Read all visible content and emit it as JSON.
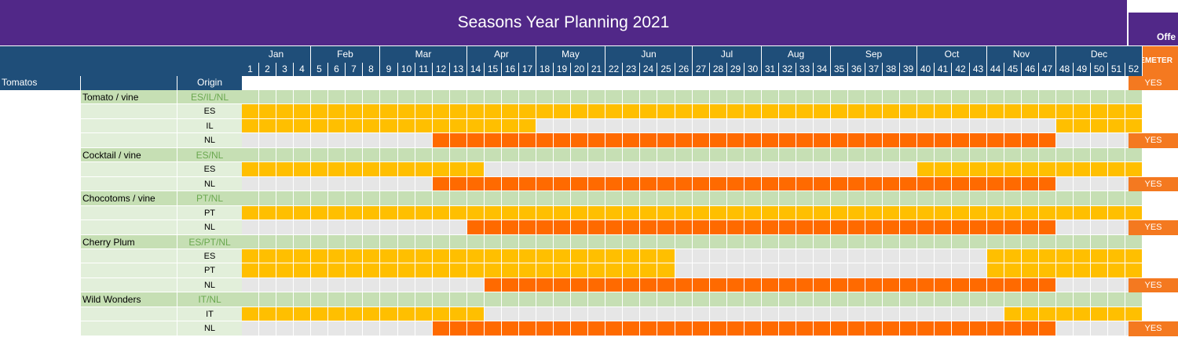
{
  "title": "Seasons Year Planning 2021",
  "offer_header": "Offe",
  "demeter_header": "DEMETER",
  "category": "Tomatos",
  "origin_header": "Origin",
  "months": [
    {
      "name": "Jan",
      "start": 1,
      "end": 4
    },
    {
      "name": "Feb",
      "start": 5,
      "end": 8
    },
    {
      "name": "Mar",
      "start": 9,
      "end": 13
    },
    {
      "name": "Apr",
      "start": 14,
      "end": 17
    },
    {
      "name": "May",
      "start": 18,
      "end": 21
    },
    {
      "name": "Jun",
      "start": 22,
      "end": 26
    },
    {
      "name": "Jul",
      "start": 27,
      "end": 30
    },
    {
      "name": "Aug",
      "start": 31,
      "end": 34
    },
    {
      "name": "Sep",
      "start": 35,
      "end": 39
    },
    {
      "name": "Oct",
      "start": 40,
      "end": 43
    },
    {
      "name": "Nov",
      "start": 44,
      "end": 47
    },
    {
      "name": "Dec",
      "start": 48,
      "end": 52
    }
  ],
  "header_demeter": "YES",
  "colors": {
    "purple": "#512888",
    "blue": "#1f4e79",
    "green": "#c6dfb4",
    "grey": "#e6e6e6",
    "yellow": "#ffbf00",
    "orange": "#ff6a00",
    "demeter": "#f47920"
  },
  "rows": [
    {
      "type": "product",
      "name": "Tomato / vine",
      "origin": "ES/IL/NL",
      "demeter": ""
    },
    {
      "type": "sub",
      "origin": "ES",
      "demeter": "",
      "ranges": [
        {
          "from": 1,
          "to": 52,
          "c": "yellow"
        }
      ]
    },
    {
      "type": "sub",
      "origin": "IL",
      "demeter": "",
      "ranges": [
        {
          "from": 1,
          "to": 17,
          "c": "yellow"
        },
        {
          "from": 48,
          "to": 52,
          "c": "yellow"
        }
      ]
    },
    {
      "type": "sub",
      "origin": "NL",
      "demeter": "YES",
      "ranges": [
        {
          "from": 12,
          "to": 47,
          "c": "orange"
        }
      ]
    },
    {
      "type": "product",
      "name": "Cocktail / vine",
      "origin": "ES/NL",
      "demeter": ""
    },
    {
      "type": "sub",
      "origin": "ES",
      "demeter": "",
      "ranges": [
        {
          "from": 1,
          "to": 14,
          "c": "yellow"
        },
        {
          "from": 40,
          "to": 52,
          "c": "yellow"
        }
      ]
    },
    {
      "type": "sub",
      "origin": "NL",
      "demeter": "YES",
      "ranges": [
        {
          "from": 12,
          "to": 47,
          "c": "orange"
        }
      ]
    },
    {
      "type": "product",
      "name": "Chocotoms / vine",
      "origin": "PT/NL",
      "demeter": ""
    },
    {
      "type": "sub",
      "origin": "PT",
      "demeter": "",
      "ranges": [
        {
          "from": 1,
          "to": 52,
          "c": "yellow"
        }
      ]
    },
    {
      "type": "sub",
      "origin": "NL",
      "demeter": "YES",
      "ranges": [
        {
          "from": 14,
          "to": 47,
          "c": "orange"
        }
      ]
    },
    {
      "type": "product",
      "name": "Cherry Plum",
      "origin": "ES/PT/NL",
      "demeter": ""
    },
    {
      "type": "sub",
      "origin": "ES",
      "demeter": "",
      "ranges": [
        {
          "from": 1,
          "to": 25,
          "c": "yellow"
        },
        {
          "from": 44,
          "to": 52,
          "c": "yellow"
        }
      ]
    },
    {
      "type": "sub",
      "origin": "PT",
      "demeter": "",
      "ranges": [
        {
          "from": 1,
          "to": 25,
          "c": "yellow"
        },
        {
          "from": 44,
          "to": 52,
          "c": "yellow"
        }
      ]
    },
    {
      "type": "sub",
      "origin": "NL",
      "demeter": "YES",
      "ranges": [
        {
          "from": 15,
          "to": 47,
          "c": "orange"
        }
      ]
    },
    {
      "type": "product",
      "name": "Wild Wonders",
      "origin": "IT/NL",
      "demeter": ""
    },
    {
      "type": "sub",
      "origin": "IT",
      "demeter": "",
      "ranges": [
        {
          "from": 1,
          "to": 14,
          "c": "yellow"
        },
        {
          "from": 45,
          "to": 52,
          "c": "yellow"
        }
      ]
    },
    {
      "type": "sub",
      "origin": "NL",
      "demeter": "YES",
      "ranges": [
        {
          "from": 12,
          "to": 47,
          "c": "orange"
        }
      ]
    }
  ]
}
